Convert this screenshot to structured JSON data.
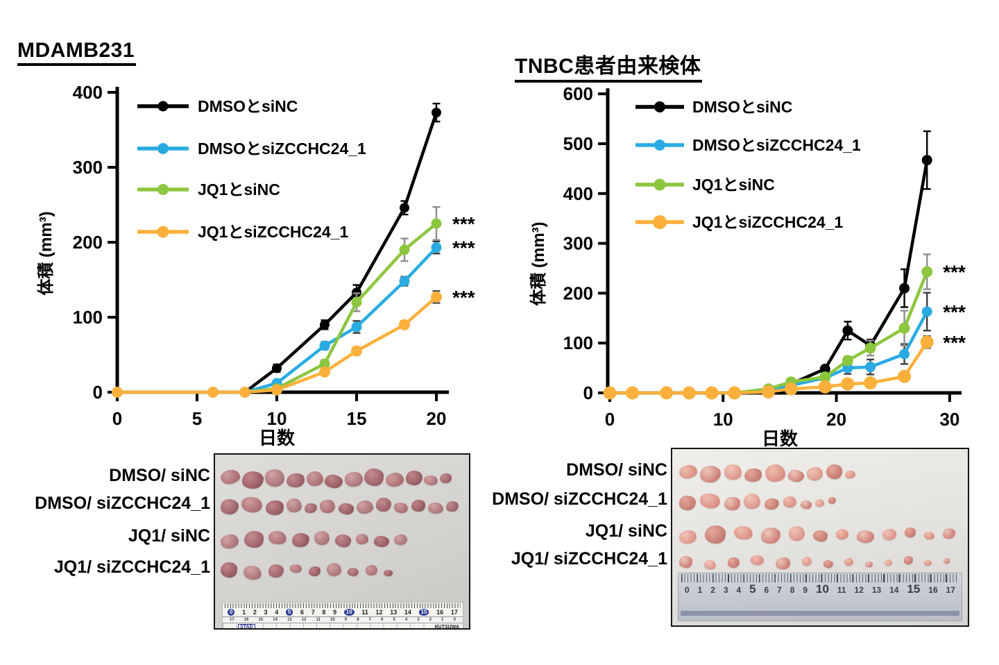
{
  "chart_data": [
    {
      "type": "line",
      "title": "MDAMB231",
      "xlabel": "日数",
      "ylabel": "体積 (mm³)",
      "xlim": [
        0,
        23
      ],
      "ylim": [
        0,
        400
      ],
      "xticks": [
        0,
        5,
        10,
        15,
        20
      ],
      "yticks": [
        0,
        100,
        200,
        300,
        400
      ],
      "grid": false,
      "legend_position": "top-left-inside",
      "x": [
        0,
        6,
        8,
        10,
        13,
        15,
        18,
        20
      ],
      "series": [
        {
          "name": "DMSOとsiNC",
          "color": "#000000",
          "values": [
            0,
            0,
            0,
            32,
            90,
            133,
            246,
            373
          ],
          "errors": [
            0,
            0,
            0,
            5,
            6,
            10,
            9,
            12
          ]
        },
        {
          "name": "DMSOとsiZCCHC24_1",
          "color": "#29ABE2",
          "values": [
            0,
            0,
            0,
            12,
            62,
            87,
            148,
            193
          ],
          "errors": [
            0,
            0,
            0,
            3,
            5,
            8,
            6,
            8
          ]
        },
        {
          "name": "JQ1とsiNC",
          "color": "#8CC63F",
          "values": [
            0,
            0,
            0,
            5,
            38,
            120,
            190,
            225
          ],
          "errors": [
            0,
            0,
            0,
            2,
            5,
            12,
            15,
            22
          ]
        },
        {
          "name": "JQ1とsiZCCHC24_1",
          "color": "#FBB03B",
          "values": [
            0,
            0,
            0,
            3,
            27,
            55,
            90,
            127
          ],
          "errors": [
            0,
            0,
            0,
            2,
            4,
            5,
            5,
            8
          ]
        }
      ],
      "annotations": [
        {
          "text": "***",
          "series_index": 2
        },
        {
          "text": "***",
          "series_index": 1
        },
        {
          "text": "***",
          "series_index": 3
        }
      ]
    },
    {
      "type": "line",
      "title": "TNBC患者由来検体",
      "xlabel": "日数",
      "ylabel": "体積 (mm³)",
      "xlim": [
        0,
        31
      ],
      "ylim": [
        0,
        600
      ],
      "xticks": [
        0,
        10,
        20,
        30
      ],
      "yticks": [
        0,
        100,
        200,
        300,
        400,
        500,
        600
      ],
      "grid": false,
      "legend_position": "top-left-inside",
      "x": [
        0,
        2,
        5,
        7,
        9,
        11,
        14,
        16,
        19,
        21,
        23,
        26,
        28
      ],
      "series": [
        {
          "name": "DMSOとsiNC",
          "color": "#000000",
          "values": [
            0,
            0,
            0,
            0,
            0,
            0,
            5,
            18,
            48,
            125,
            95,
            210,
            467
          ],
          "errors": [
            0,
            0,
            0,
            0,
            0,
            0,
            0,
            4,
            6,
            18,
            12,
            38,
            58
          ]
        },
        {
          "name": "DMSOとsiZCCHC24_1",
          "color": "#29ABE2",
          "values": [
            0,
            0,
            0,
            0,
            0,
            0,
            5,
            15,
            30,
            50,
            52,
            78,
            163
          ],
          "errors": [
            0,
            0,
            0,
            0,
            0,
            0,
            0,
            3,
            5,
            12,
            15,
            20,
            38
          ]
        },
        {
          "name": "JQ1とsiNC",
          "color": "#8CC63F",
          "values": [
            0,
            0,
            0,
            0,
            0,
            0,
            8,
            22,
            32,
            65,
            90,
            130,
            243
          ],
          "errors": [
            0,
            0,
            0,
            0,
            0,
            0,
            0,
            4,
            5,
            8,
            15,
            35,
            35
          ]
        },
        {
          "name": "JQ1とsiZCCHC24_1",
          "color": "#FBB03B",
          "values": [
            0,
            0,
            0,
            0,
            0,
            0,
            2,
            8,
            12,
            18,
            20,
            33,
            102
          ],
          "errors": [
            0,
            0,
            0,
            0,
            0,
            0,
            0,
            2,
            3,
            4,
            5,
            8,
            12
          ]
        }
      ],
      "annotations": [
        {
          "text": "***",
          "series_index": 2
        },
        {
          "text": "***",
          "series_index": 1
        },
        {
          "text": "***",
          "series_index": 3
        }
      ]
    }
  ],
  "photos": [
    {
      "rows": [
        {
          "label": "DMSO/ siNC",
          "tumor_count": 12,
          "tumor_sizes": [
            28,
            31,
            28,
            26,
            24,
            26,
            26,
            28,
            26,
            24,
            20,
            17
          ]
        },
        {
          "label": "DMSO/ siZCCHC24_1",
          "tumor_count": 13,
          "tumor_sizes": [
            26,
            30,
            26,
            22,
            18,
            22,
            22,
            24,
            22,
            20,
            20,
            22,
            18
          ]
        },
        {
          "label": "JQ1/ siNC",
          "tumor_count": 9,
          "tumor_sizes": [
            26,
            28,
            26,
            25,
            22,
            23,
            18,
            22,
            19
          ]
        },
        {
          "label": "JQ1/ siZCCHC24_1",
          "tumor_count": 9,
          "tumor_sizes": [
            24,
            26,
            22,
            17,
            17,
            21,
            16,
            17,
            13
          ]
        }
      ],
      "ruler": {
        "numbers": [
          0,
          1,
          2,
          3,
          4,
          5,
          6,
          7,
          8,
          9,
          10,
          11,
          12,
          13,
          14,
          15,
          16,
          17
        ],
        "highlighted_numbers": [
          0,
          5,
          10,
          15
        ],
        "reverse_numbers": [
          17,
          16,
          15,
          14,
          13,
          12,
          11,
          10,
          9,
          8,
          7,
          6,
          5,
          4,
          3,
          2,
          1,
          0
        ],
        "brand_left": "STAD",
        "brand_right": "KUTSUWA"
      }
    },
    {
      "rows": [
        {
          "label": "DMSO/ siNC",
          "tumor_count": 9,
          "tumor_sizes": [
            26,
            30,
            25,
            25,
            29,
            23,
            23,
            23,
            15
          ]
        },
        {
          "label": "DMSO/ siZCCHC24_1",
          "tumor_count": 9,
          "tumor_sizes": [
            24,
            29,
            23,
            24,
            21,
            19,
            16,
            13,
            11
          ]
        },
        {
          "label": "JQ1/ siNC",
          "tumor_count": 12,
          "tumor_sizes": [
            25,
            30,
            27,
            28,
            23,
            21,
            18,
            25,
            20,
            16,
            15,
            18
          ]
        },
        {
          "label": "JQ1/ siZCCHC24_1",
          "tumor_count": 13,
          "tumor_sizes": [
            19,
            17,
            17,
            19,
            21,
            14,
            14,
            13,
            11,
            11,
            13,
            11,
            9
          ]
        }
      ],
      "ruler": {
        "numbers": [
          0,
          1,
          2,
          3,
          4,
          5,
          6,
          7,
          8,
          9,
          10,
          11,
          12,
          13,
          14,
          15,
          16,
          17
        ],
        "emphasized_numbers": [
          5,
          10,
          15
        ]
      }
    }
  ]
}
